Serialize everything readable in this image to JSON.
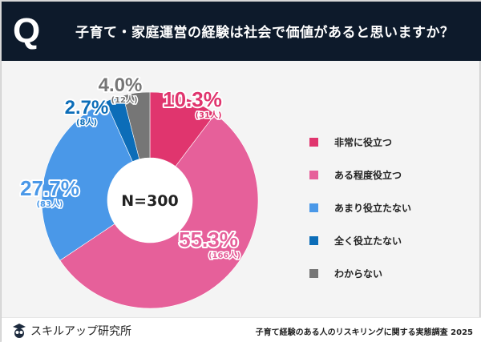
{
  "header": {
    "q": "Q",
    "title": "子育て・家庭運営の経験は社会で価値があると思いますか？"
  },
  "chart_data": {
    "type": "pie",
    "center_label": "N=300",
    "categories": [
      "非常に役立つ",
      "ある程度役立つ",
      "あまり役立たない",
      "全く役立たない",
      "わからない"
    ],
    "values": [
      10.3,
      55.3,
      27.7,
      2.7,
      4.0
    ],
    "value_labels": [
      "10.3%",
      "55.3%",
      "27.7%",
      "2.7%",
      "4.0%"
    ],
    "counts": [
      "(31人)",
      "(166人)",
      "(83人)",
      "(8人)",
      "(12人)"
    ],
    "colors": [
      "#e0356e",
      "#e6609a",
      "#4a98e8",
      "#0c6db8",
      "#767676"
    ],
    "legend_position": "right"
  },
  "footer": {
    "logo": "スキルアップ研究所",
    "source": "子育て経験のある人のリスキリングに関する実態調査 2025"
  }
}
